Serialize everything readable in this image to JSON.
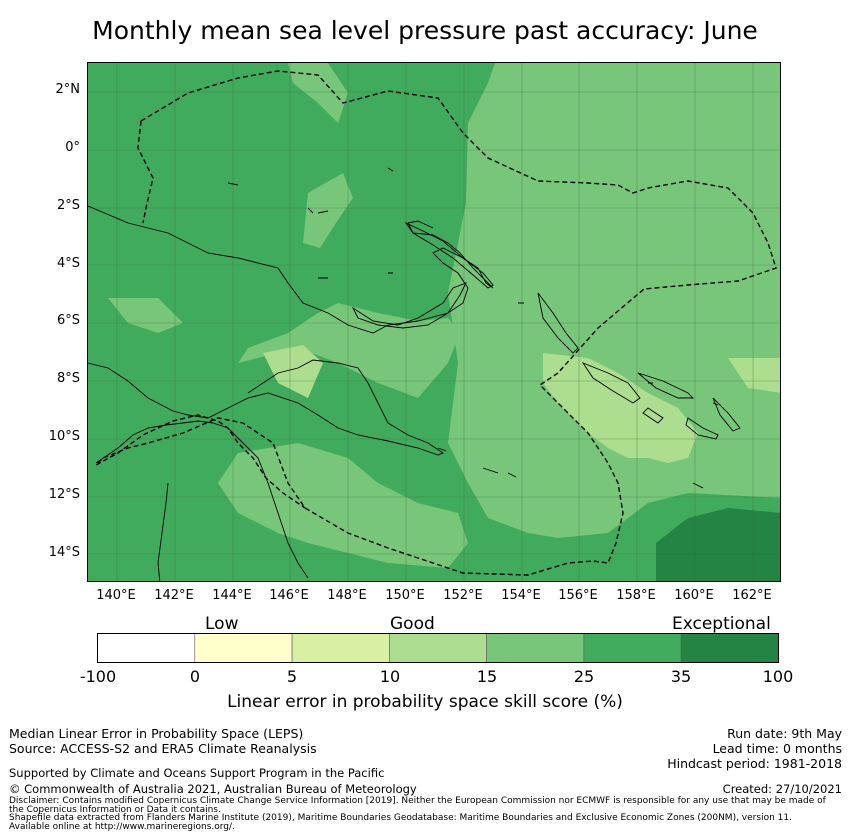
{
  "title": "Monthly mean sea level pressure past accuracy: June",
  "map": {
    "lat_labels": [
      "2°N",
      "0°",
      "2°S",
      "4°S",
      "6°S",
      "8°S",
      "10°S",
      "12°S",
      "14°S"
    ],
    "lon_labels": [
      "140°E",
      "142°E",
      "144°E",
      "146°E",
      "148°E",
      "150°E",
      "152°E",
      "154°E",
      "156°E",
      "158°E",
      "160°E",
      "162°E"
    ],
    "lat_range": [
      -15,
      3
    ],
    "lon_range": [
      139,
      163
    ],
    "gridlines": true,
    "colors": {
      "c35_100": "#238443",
      "c25_35": "#41ab5d",
      "c15_25": "#78c679",
      "c10_15": "#addd8e",
      "c5_10": "#d9f0a3",
      "c0_5": "#ffffcc",
      "below0": "#ffffff"
    }
  },
  "colorbar": {
    "category_labels": [
      "Low",
      "Good",
      "Exceptional"
    ],
    "ticks": [
      "-100",
      "0",
      "5",
      "10",
      "15",
      "25",
      "35",
      "100"
    ],
    "bins": [
      {
        "from": -100,
        "to": 0,
        "color": "#ffffff"
      },
      {
        "from": 0,
        "to": 5,
        "color": "#ffffcc"
      },
      {
        "from": 5,
        "to": 10,
        "color": "#d9f0a3"
      },
      {
        "from": 10,
        "to": 15,
        "color": "#addd8e"
      },
      {
        "from": 15,
        "to": 25,
        "color": "#78c679"
      },
      {
        "from": 25,
        "to": 35,
        "color": "#41ab5d"
      },
      {
        "from": 35,
        "to": 100,
        "color": "#238443"
      }
    ],
    "label": "Linear error in probability space skill score (%)"
  },
  "footer": {
    "left1": "Median Linear Error in Probability Space (LEPS)",
    "left2": "Source: ACCESS-S2 and ERA5 Climate Reanalysis",
    "right1": "Run date: 9th May",
    "right2": "Lead time: 0 months",
    "right3": "Hindcast period: 1981-2018",
    "support": "Supported by Climate and Oceans Support Program in the Pacific",
    "copyright": "© Commonwealth of Australia 2021, Australian Bureau of Meteorology",
    "created": "Created: 27/10/2021",
    "disclaimer1": "Disclaimer: Contains modified Copernicus Climate Change Service Information [2019]. Neither the European Commission nor ECMWF is responsible for any use that may be made of",
    "disclaimer2": "the Copernicus Information or Data it contains.",
    "shapefile1": "Shapefile data extracted from Flanders Marine Institute (2019), Maritime Boundaries Geodatabase: Maritime Boundaries and Exclusive Economic Zones (200NM), version 11.",
    "shapefile2": "Available online at http://www.marineregions.org/."
  }
}
